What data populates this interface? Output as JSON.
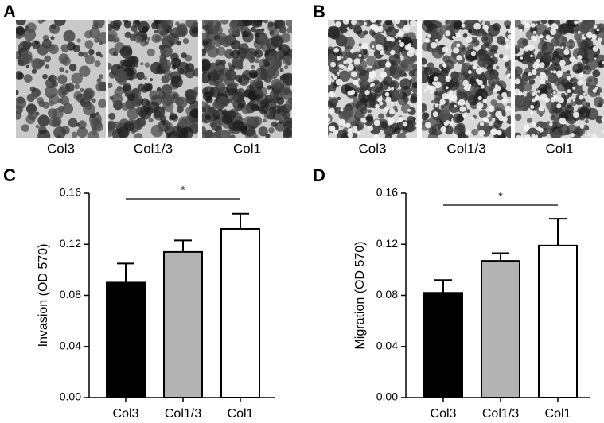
{
  "image_panels": [
    {
      "label": "A",
      "captions": [
        "Col3",
        "Col1/3",
        "Col1"
      ]
    },
    {
      "label": "B",
      "captions": [
        "Col3",
        "Col1/3",
        "Col1"
      ]
    }
  ],
  "chart_data": [
    {
      "type": "bar",
      "panel_label": "C",
      "y_label": "Invasion (OD 570)",
      "categories": [
        "Col3",
        "Col1/3",
        "Col1"
      ],
      "values": [
        0.09,
        0.114,
        0.132
      ],
      "errors": [
        0.015,
        0.009,
        0.012
      ],
      "colors": [
        "#000000",
        "#b3b3b3",
        "#ffffff"
      ],
      "ylim": [
        0,
        0.16
      ],
      "yticks": [
        {
          "value": 0,
          "label": "0.00"
        },
        0.04,
        0.08,
        0.12,
        0.16
      ],
      "significance": {
        "text": "*",
        "between": [
          "Col3",
          "Col1"
        ]
      }
    },
    {
      "type": "bar",
      "panel_label": "D",
      "y_label": "Migration (OD 570)",
      "categories": [
        "Col3",
        "Col1/3",
        "Col1"
      ],
      "values": [
        0.082,
        0.107,
        0.119
      ],
      "errors": [
        0.01,
        0.006,
        0.021
      ],
      "colors": [
        "#000000",
        "#b3b3b3",
        "#ffffff"
      ],
      "ylim": [
        0,
        0.16
      ],
      "yticks": [
        {
          "value": 0,
          "label": "0.00"
        },
        0.04,
        0.08,
        0.12,
        0.16
      ],
      "significance": {
        "text": "*",
        "between": [
          "Col3",
          "Col1"
        ]
      }
    }
  ]
}
